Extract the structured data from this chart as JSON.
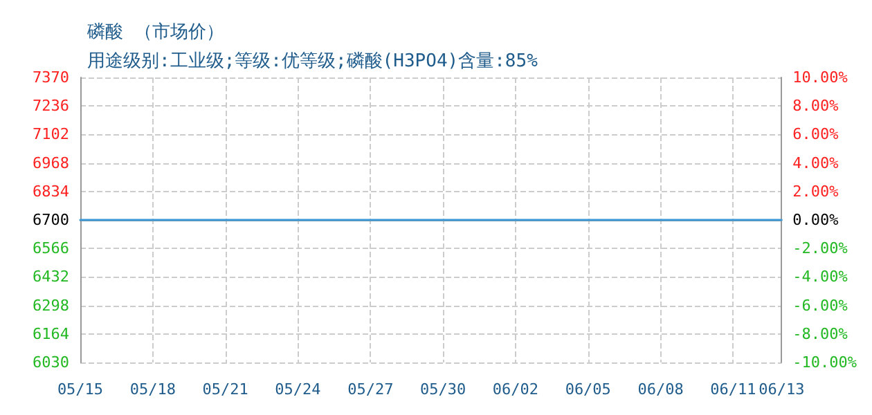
{
  "chart_data": {
    "type": "line",
    "title": "磷酸 （市场价）",
    "subtitle": "用途级别:工业级;等级:优等级;磷酸(H3PO4)含量:85%",
    "categories": [
      "05/15",
      null,
      null,
      "05/18",
      null,
      null,
      "05/21",
      null,
      null,
      "05/24",
      null,
      null,
      "05/27",
      null,
      null,
      "05/30",
      null,
      null,
      "06/02",
      null,
      null,
      "06/05",
      null,
      null,
      "06/08",
      null,
      null,
      "06/11",
      null,
      "06/13"
    ],
    "series": [
      {
        "color": "#3c9ad8",
        "values": [
          6700,
          6700,
          6700,
          6700,
          6700,
          6700,
          6700,
          6700,
          6700,
          6700,
          6700,
          6700,
          6700,
          6700,
          6700,
          6700,
          6700,
          6700,
          6700,
          6700,
          6700,
          6700,
          6700,
          6700,
          6700,
          6700,
          6700,
          6700,
          6700,
          6700
        ]
      }
    ],
    "ylim": [
      6030,
      7370
    ],
    "yticks": [
      6030,
      6164,
      6298,
      6432,
      6566,
      6700,
      6834,
      6968,
      7102,
      7236,
      7370
    ],
    "y2lim": [
      -10,
      10
    ],
    "y2ticks": [
      {
        "value": -10,
        "label": "-10.00%"
      },
      {
        "value": -8,
        "label": "-8.00%"
      },
      {
        "value": -6,
        "label": "-6.00%"
      },
      {
        "value": -4,
        "label": "-4.00%"
      },
      {
        "value": -2,
        "label": "-2.00%"
      },
      {
        "value": 0,
        "label": "0.00%"
      },
      {
        "value": 2,
        "label": "2.00%"
      },
      {
        "value": 4,
        "label": "4.00%"
      },
      {
        "value": 6,
        "label": "6.00%"
      },
      {
        "value": 8,
        "label": "8.00%"
      },
      {
        "value": 10,
        "label": "10.00%"
      }
    ],
    "grid": true,
    "marker": "none",
    "line_style": "solid"
  }
}
